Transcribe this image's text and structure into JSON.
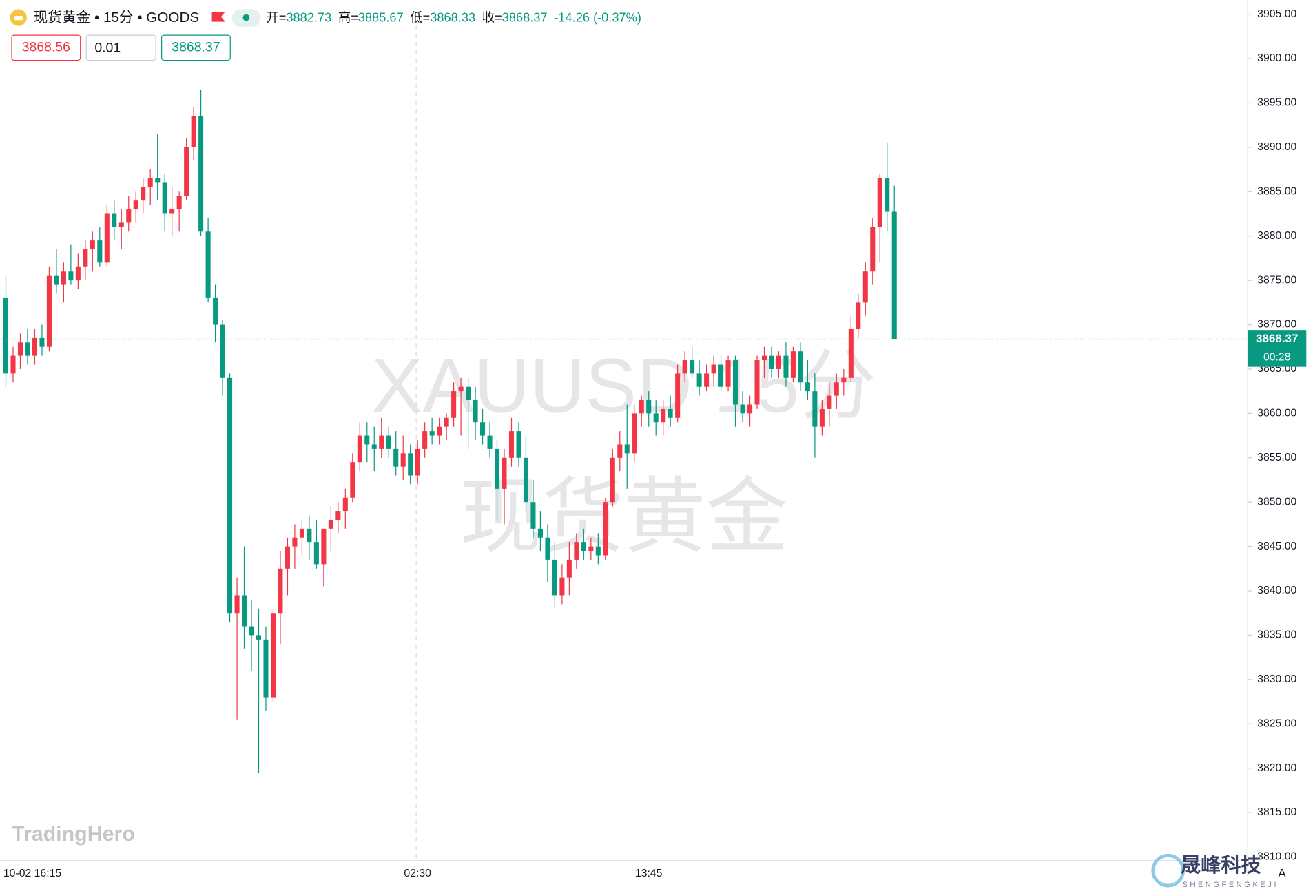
{
  "chart_data": {
    "type": "candlestick",
    "header": {
      "title": "现货黄金 • 15分 • GOODS",
      "open_label": "开=",
      "high_label": "高=",
      "low_label": "低=",
      "close_label": "收=",
      "change": "-14.26 (-0.37%)"
    },
    "trade_panel": {
      "sell": "3868.56",
      "quantity": "0.01",
      "buy": "3868.37"
    },
    "price_tag": {
      "price": "3868.37",
      "countdown": "00:28"
    },
    "watermark": {
      "symbol": "XAUUSD 15分",
      "name": "现货黄金",
      "brand": "TradingHero",
      "logo": "晟峰科技",
      "logo_sub": "SHENGFENGKEJI",
      "scale_mode": "A"
    },
    "up_color": "#f23645",
    "down_color": "#089981",
    "ylim": [
      3809.6,
      3906.6
    ],
    "yticks": [
      {
        "value": 3810,
        "label": "3810.00"
      },
      {
        "value": 3815,
        "label": "3815.00"
      },
      {
        "value": 3820,
        "label": "3820.00"
      },
      {
        "value": 3825,
        "label": "3825.00"
      },
      {
        "value": 3830,
        "label": "3830.00"
      },
      {
        "value": 3835,
        "label": "3835.00"
      },
      {
        "value": 3840,
        "label": "3840.00"
      },
      {
        "value": 3845,
        "label": "3845.00"
      },
      {
        "value": 3850,
        "label": "3850.00"
      },
      {
        "value": 3855,
        "label": "3855.00"
      },
      {
        "value": 3860,
        "label": "3860.00"
      },
      {
        "value": 3865,
        "label": "3865.00"
      },
      {
        "value": 3870,
        "label": "3870.00"
      },
      {
        "value": 3875,
        "label": "3875.00"
      },
      {
        "value": 3880,
        "label": "3880.00"
      },
      {
        "value": 3885,
        "label": "3885.00"
      },
      {
        "value": 3890,
        "label": "3890.00"
      },
      {
        "value": 3895,
        "label": "3895.00"
      },
      {
        "value": 3900,
        "label": "3900.00"
      },
      {
        "value": 3905,
        "label": "3905.00"
      }
    ],
    "categories": [
      "10-02 16:15",
      null,
      null,
      null,
      null,
      null,
      null,
      null,
      null,
      null,
      null,
      null,
      null,
      null,
      null,
      null,
      null,
      null,
      null,
      null,
      null,
      null,
      null,
      null,
      null,
      null,
      null,
      null,
      null,
      null,
      null,
      null,
      null,
      null,
      null,
      null,
      null,
      null,
      null,
      null,
      null,
      null,
      null,
      null,
      null,
      null,
      null,
      null,
      null,
      null,
      null,
      null,
      null,
      null,
      null,
      null,
      null,
      "02:30",
      null,
      null,
      null,
      null,
      null,
      null,
      null,
      null,
      null,
      null,
      null,
      null,
      null,
      null,
      null,
      null,
      null,
      null,
      null,
      null,
      null,
      null,
      null,
      null,
      null,
      null,
      null,
      null,
      null,
      null,
      null,
      "13:45",
      null,
      null,
      null,
      null,
      null,
      null,
      null,
      null,
      null,
      null,
      null,
      null,
      null,
      null,
      null,
      null,
      null,
      null,
      null,
      null,
      null,
      null,
      null,
      null,
      null,
      null,
      null,
      null,
      null,
      null,
      null,
      null,
      null,
      null
    ],
    "open": [
      3873.0,
      3864.5,
      3866.5,
      3868.0,
      3866.5,
      3868.5,
      3867.5,
      3875.5,
      3874.5,
      3876.0,
      3875.0,
      3876.5,
      3878.5,
      3879.5,
      3877.0,
      3882.5,
      3881.0,
      3881.5,
      3883.0,
      3884.0,
      3885.5,
      3886.5,
      3886.0,
      3882.5,
      3883.0,
      3884.5,
      3890.0,
      3893.5,
      3880.5,
      3873.0,
      3870.0,
      3864.0,
      3837.5,
      3839.5,
      3836.0,
      3835.0,
      3834.5,
      3828.0,
      3837.5,
      3842.5,
      3845.0,
      3846.0,
      3847.0,
      3845.5,
      3843.0,
      3847.0,
      3848.0,
      3849.0,
      3850.5,
      3854.5,
      3857.5,
      3856.5,
      3856.0,
      3857.5,
      3856.0,
      3854.0,
      3855.5,
      3853.0,
      3856.0,
      3858.0,
      3857.5,
      3858.5,
      3859.5,
      3862.5,
      3863.0,
      3861.5,
      3859.0,
      3857.5,
      3856.0,
      3851.5,
      3855.0,
      3858.0,
      3855.0,
      3850.0,
      3847.0,
      3846.0,
      3843.5,
      3839.5,
      3841.5,
      3843.5,
      3845.5,
      3844.5,
      3845.0,
      3844.0,
      3850.0,
      3855.0,
      3856.5,
      3855.5,
      3860.0,
      3861.5,
      3860.0,
      3859.0,
      3860.5,
      3859.5,
      3864.5,
      3866.0,
      3864.5,
      3863.0,
      3864.5,
      3865.5,
      3863.0,
      3866.0,
      3861.0,
      3860.0,
      3861.0,
      3866.0,
      3866.5,
      3865.0,
      3866.5,
      3864.0,
      3867.0,
      3863.5,
      3862.5,
      3858.5,
      3860.5,
      3862.0,
      3863.5,
      3864.0,
      3869.5,
      3872.5,
      3876.0,
      3881.0,
      3886.5,
      3882.73
    ],
    "high": [
      3875.5,
      3867.5,
      3869.0,
      3869.5,
      3869.5,
      3870.0,
      3876.5,
      3878.5,
      3877.0,
      3879.0,
      3878.0,
      3879.5,
      3880.5,
      3881.0,
      3883.5,
      3884.0,
      3883.0,
      3884.5,
      3885.0,
      3886.5,
      3887.5,
      3891.5,
      3887.0,
      3885.5,
      3885.0,
      3891.0,
      3894.5,
      3896.5,
      3882.0,
      3874.5,
      3870.5,
      3864.5,
      3841.5,
      3845.0,
      3839.0,
      3838.0,
      3836.0,
      3838.0,
      3844.5,
      3846.0,
      3847.5,
      3848.0,
      3848.5,
      3848.0,
      3846.5,
      3849.5,
      3850.0,
      3851.5,
      3855.5,
      3859.0,
      3859.0,
      3858.5,
      3859.5,
      3858.5,
      3858.0,
      3857.5,
      3856.5,
      3857.0,
      3859.0,
      3859.5,
      3859.5,
      3860.0,
      3863.5,
      3864.0,
      3864.0,
      3863.0,
      3860.5,
      3859.0,
      3857.0,
      3856.0,
      3859.5,
      3859.0,
      3857.5,
      3852.5,
      3849.0,
      3847.5,
      3845.5,
      3843.0,
      3845.5,
      3846.5,
      3847.0,
      3846.0,
      3846.5,
      3850.5,
      3856.0,
      3858.0,
      3861.0,
      3861.0,
      3862.0,
      3862.5,
      3861.5,
      3861.5,
      3862.0,
      3865.5,
      3867.0,
      3867.5,
      3866.0,
      3865.5,
      3866.5,
      3866.5,
      3866.5,
      3866.5,
      3862.5,
      3862.0,
      3866.5,
      3867.5,
      3867.5,
      3867.0,
      3868.0,
      3867.5,
      3868.0,
      3866.0,
      3864.5,
      3861.5,
      3863.5,
      3864.5,
      3865.0,
      3871.0,
      3873.5,
      3877.0,
      3882.0,
      3887.0,
      3890.5,
      3885.67
    ],
    "low": [
      3863.0,
      3863.5,
      3865.0,
      3865.5,
      3865.5,
      3866.5,
      3867.0,
      3873.5,
      3872.5,
      3874.5,
      3874.0,
      3875.0,
      3876.0,
      3876.5,
      3876.5,
      3879.5,
      3878.5,
      3880.5,
      3881.5,
      3882.5,
      3883.5,
      3884.0,
      3880.5,
      3880.0,
      3880.5,
      3884.0,
      3888.5,
      3880.0,
      3872.5,
      3868.0,
      3862.0,
      3836.5,
      3825.5,
      3833.5,
      3831.0,
      3819.5,
      3826.5,
      3827.5,
      3834.0,
      3839.5,
      3842.5,
      3844.0,
      3843.5,
      3842.5,
      3840.5,
      3844.5,
      3846.5,
      3847.0,
      3850.0,
      3853.5,
      3854.5,
      3853.5,
      3855.0,
      3855.0,
      3853.0,
      3852.5,
      3852.0,
      3852.0,
      3855.0,
      3856.5,
      3856.5,
      3857.0,
      3858.5,
      3857.5,
      3856.0,
      3857.0,
      3856.5,
      3855.0,
      3848.0,
      3847.5,
      3854.0,
      3854.0,
      3849.0,
      3846.0,
      3844.5,
      3841.0,
      3838.0,
      3838.5,
      3839.5,
      3842.5,
      3843.5,
      3843.5,
      3843.0,
      3843.5,
      3849.5,
      3853.5,
      3851.5,
      3854.5,
      3858.5,
      3858.5,
      3857.5,
      3857.5,
      3858.5,
      3859.0,
      3863.5,
      3864.0,
      3862.0,
      3862.5,
      3863.0,
      3862.5,
      3862.5,
      3858.5,
      3859.0,
      3858.5,
      3860.5,
      3864.0,
      3864.0,
      3864.0,
      3863.0,
      3863.5,
      3862.5,
      3861.5,
      3855.0,
      3857.5,
      3858.5,
      3860.5,
      3862.0,
      3863.5,
      3868.5,
      3871.0,
      3874.5,
      3877.0,
      3880.5,
      3868.33
    ],
    "close": [
      3864.5,
      3866.5,
      3868.0,
      3866.5,
      3868.5,
      3867.5,
      3875.5,
      3874.5,
      3876.0,
      3875.0,
      3876.5,
      3878.5,
      3879.5,
      3877.0,
      3882.5,
      3881.0,
      3881.5,
      3883.0,
      3884.0,
      3885.5,
      3886.5,
      3886.0,
      3882.5,
      3883.0,
      3884.5,
      3890.0,
      3893.5,
      3880.5,
      3873.0,
      3870.0,
      3864.0,
      3837.5,
      3839.5,
      3836.0,
      3835.0,
      3834.5,
      3828.0,
      3837.5,
      3842.5,
      3845.0,
      3846.0,
      3847.0,
      3845.5,
      3843.0,
      3847.0,
      3848.0,
      3849.0,
      3850.5,
      3854.5,
      3857.5,
      3856.5,
      3856.0,
      3857.5,
      3856.0,
      3854.0,
      3855.5,
      3853.0,
      3856.0,
      3858.0,
      3857.5,
      3858.5,
      3859.5,
      3862.5,
      3863.0,
      3861.5,
      3859.0,
      3857.5,
      3856.0,
      3851.5,
      3855.0,
      3858.0,
      3855.0,
      3850.0,
      3847.0,
      3846.0,
      3843.5,
      3839.5,
      3841.5,
      3843.5,
      3845.5,
      3844.5,
      3845.0,
      3844.0,
      3850.0,
      3855.0,
      3856.5,
      3855.5,
      3860.0,
      3861.5,
      3860.0,
      3859.0,
      3860.5,
      3859.5,
      3864.5,
      3866.0,
      3864.5,
      3863.0,
      3864.5,
      3865.5,
      3863.0,
      3866.0,
      3861.0,
      3860.0,
      3861.0,
      3866.0,
      3866.5,
      3865.0,
      3866.5,
      3864.0,
      3867.0,
      3863.5,
      3862.5,
      3858.5,
      3860.5,
      3862.0,
      3863.5,
      3864.0,
      3869.5,
      3872.5,
      3876.0,
      3881.0,
      3886.5,
      3882.73,
      3868.37
    ]
  }
}
